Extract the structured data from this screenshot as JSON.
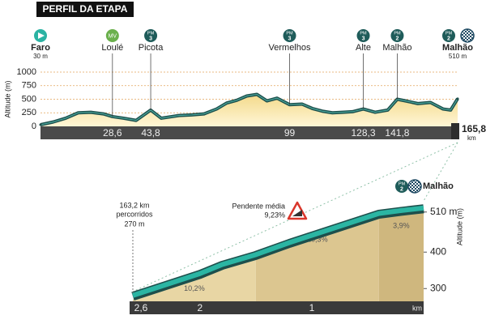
{
  "chart_data": [
    {
      "type": "area",
      "title": "PERFIL DA ETAPA",
      "ylabel": "Altitude (m)",
      "x_unit": "km",
      "xlim": [
        0,
        165.8
      ],
      "ylim": [
        0,
        1000
      ],
      "yticks": [
        0,
        250,
        500,
        750,
        1000
      ],
      "grid": true,
      "xticks": [
        {
          "value": 28.6,
          "label": "28,6"
        },
        {
          "value": 43.8,
          "label": "43,8"
        },
        99,
        {
          "value": 128.3,
          "label": "128,3"
        },
        {
          "value": 141.8,
          "label": "141,8"
        },
        {
          "value": 165.8,
          "label": "165,8"
        }
      ],
      "x": [
        0,
        5,
        10,
        15,
        20,
        25,
        28.6,
        33,
        38,
        43.8,
        48,
        55,
        60,
        65,
        70,
        74,
        78,
        82,
        86,
        90,
        94,
        99,
        104,
        108,
        112,
        116,
        120,
        124,
        128.3,
        133,
        138,
        141.8,
        145,
        150,
        155,
        160,
        163,
        165.8
      ],
      "values": [
        30,
        80,
        150,
        250,
        260,
        230,
        180,
        150,
        110,
        300,
        150,
        200,
        210,
        230,
        320,
        430,
        480,
        560,
        590,
        470,
        520,
        400,
        410,
        330,
        280,
        250,
        260,
        270,
        320,
        260,
        300,
        500,
        470,
        420,
        440,
        320,
        300,
        510
      ],
      "color": "#1d4f4c",
      "fill": "#f3d98a",
      "waypoints": [
        {
          "name": "Faro",
          "km": 0,
          "badge": "start",
          "altitude": 30,
          "altitude_label": "30 m"
        },
        {
          "name": "Loulé",
          "km": 28.6,
          "badge": "MV"
        },
        {
          "name": "Picota",
          "km": 43.8,
          "badge": "PM",
          "category": 3
        },
        {
          "name": "Vermelhos",
          "km": 99,
          "badge": "PM",
          "category": 3
        },
        {
          "name": "Alte",
          "km": 128.3,
          "badge": "PM",
          "category": 3
        },
        {
          "name": "Malhão",
          "km": 141.8,
          "badge": "PM",
          "category": 2
        },
        {
          "name": "Malhão",
          "km": 165.8,
          "badge": "PM",
          "category": 2,
          "finish": true,
          "altitude": 510,
          "altitude_label": "510 m"
        }
      ]
    },
    {
      "type": "area",
      "ylabel": "Altitude (m)",
      "x_unit": "km",
      "xlim": [
        2.6,
        0
      ],
      "ylim": [
        265,
        520
      ],
      "xticks": [
        {
          "value": 2.6,
          "label": "2,6"
        },
        2,
        1
      ],
      "yticks": [
        300,
        400,
        {
          "value": 510,
          "label": "510 m"
        }
      ],
      "x": [
        2.6,
        2.2,
        2.0,
        1.8,
        1.5,
        1.2,
        1.0,
        0.7,
        0.4,
        0.2,
        0
      ],
      "values": [
        270,
        310,
        330,
        355,
        382,
        415,
        435,
        465,
        495,
        503,
        510
      ],
      "color": "#2bb5a3",
      "segments": [
        {
          "start": 2.6,
          "end": 1.5,
          "value": 10.2,
          "label": "10,2%",
          "color": "#e8d6a4"
        },
        {
          "start": 1.5,
          "end": 0.4,
          "value": 10.3,
          "label": "10,3%",
          "color": "#dcc690"
        },
        {
          "start": 0.4,
          "end": 0,
          "value": 3.9,
          "label": "3,9%",
          "color": "#cfb77e"
        }
      ],
      "start_note": {
        "distance": 163.2,
        "distance_label": "163,2 km",
        "label": "percorridos",
        "altitude": 270,
        "altitude_label": "270 m"
      },
      "average_gradient": {
        "label": "Pendente média",
        "value": 9.23,
        "value_label": "9,23%"
      },
      "finish": {
        "name": "Malhão",
        "badge": "PM",
        "category": 2
      }
    }
  ]
}
